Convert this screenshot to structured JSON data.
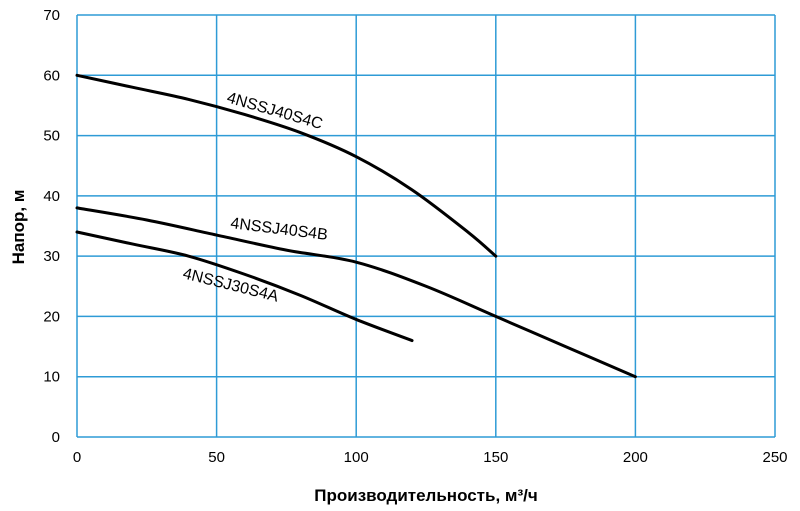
{
  "chart_data": {
    "type": "line",
    "title": "",
    "xlabel": "Производительность, м³/ч",
    "ylabel": "Напор, м",
    "xlim": [
      0,
      250
    ],
    "ylim": [
      0,
      70
    ],
    "x_ticks": [
      0,
      50,
      100,
      150,
      200,
      250
    ],
    "y_ticks": [
      0,
      10,
      20,
      30,
      40,
      50,
      60,
      70
    ],
    "grid": true,
    "legend": "inline labels on curves",
    "colors": {
      "grid": "#2e9bd6",
      "series": "#000000"
    },
    "series": [
      {
        "name": "4NSSJ40S4C",
        "x": [
          0,
          20,
          40,
          60,
          80,
          100,
          120,
          140,
          150
        ],
        "y": [
          60,
          58,
          56,
          53.5,
          50.5,
          46.5,
          41,
          34,
          30
        ]
      },
      {
        "name": "4NSSJ40S4B",
        "x": [
          0,
          25,
          50,
          75,
          100,
          125,
          150,
          175,
          200
        ],
        "y": [
          38,
          36,
          33.5,
          31,
          29,
          25,
          20,
          15,
          10
        ]
      },
      {
        "name": "4NSSJ30S4A",
        "x": [
          0,
          20,
          40,
          60,
          80,
          100,
          120
        ],
        "y": [
          34,
          32,
          30,
          27,
          23.5,
          19.5,
          16
        ]
      }
    ]
  }
}
